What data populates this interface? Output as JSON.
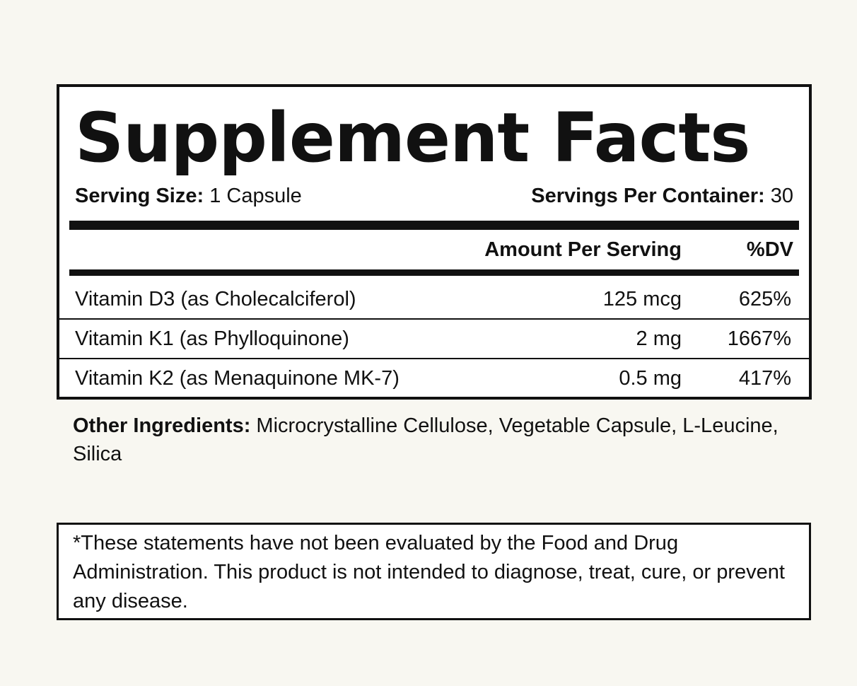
{
  "facts": {
    "title": "Supplement Facts",
    "serving_size_label": "Serving Size:",
    "serving_size_value": "1 Capsule",
    "servings_per_container_label": "Servings Per Container:",
    "servings_per_container_value": "30",
    "column_amount_header": "Amount Per Serving",
    "column_dv_header": "%DV",
    "nutrients": [
      {
        "name": "Vitamin D3 (as Cholecalciferol)",
        "amount": "125 mcg",
        "dv": "625%"
      },
      {
        "name": "Vitamin K1 (as Phylloquinone)",
        "amount": "2 mg",
        "dv": "1667%"
      },
      {
        "name": "Vitamin K2 (as Menaquinone MK-7)",
        "amount": "0.5 mg",
        "dv": "417%"
      }
    ]
  },
  "other_ingredients": {
    "label": "Other Ingredients:",
    "value": "Microcrystalline Cellulose, Vegetable Capsule, L-Leucine, Silica"
  },
  "disclaimer": {
    "text": "*These statements have not been evaluated by the Food and Drug Administration. This product is not intended to diagnose, treat, cure, or prevent any disease."
  },
  "colors": {
    "background": "#f8f7f1",
    "panel": "#ffffff",
    "ink": "#111111"
  }
}
